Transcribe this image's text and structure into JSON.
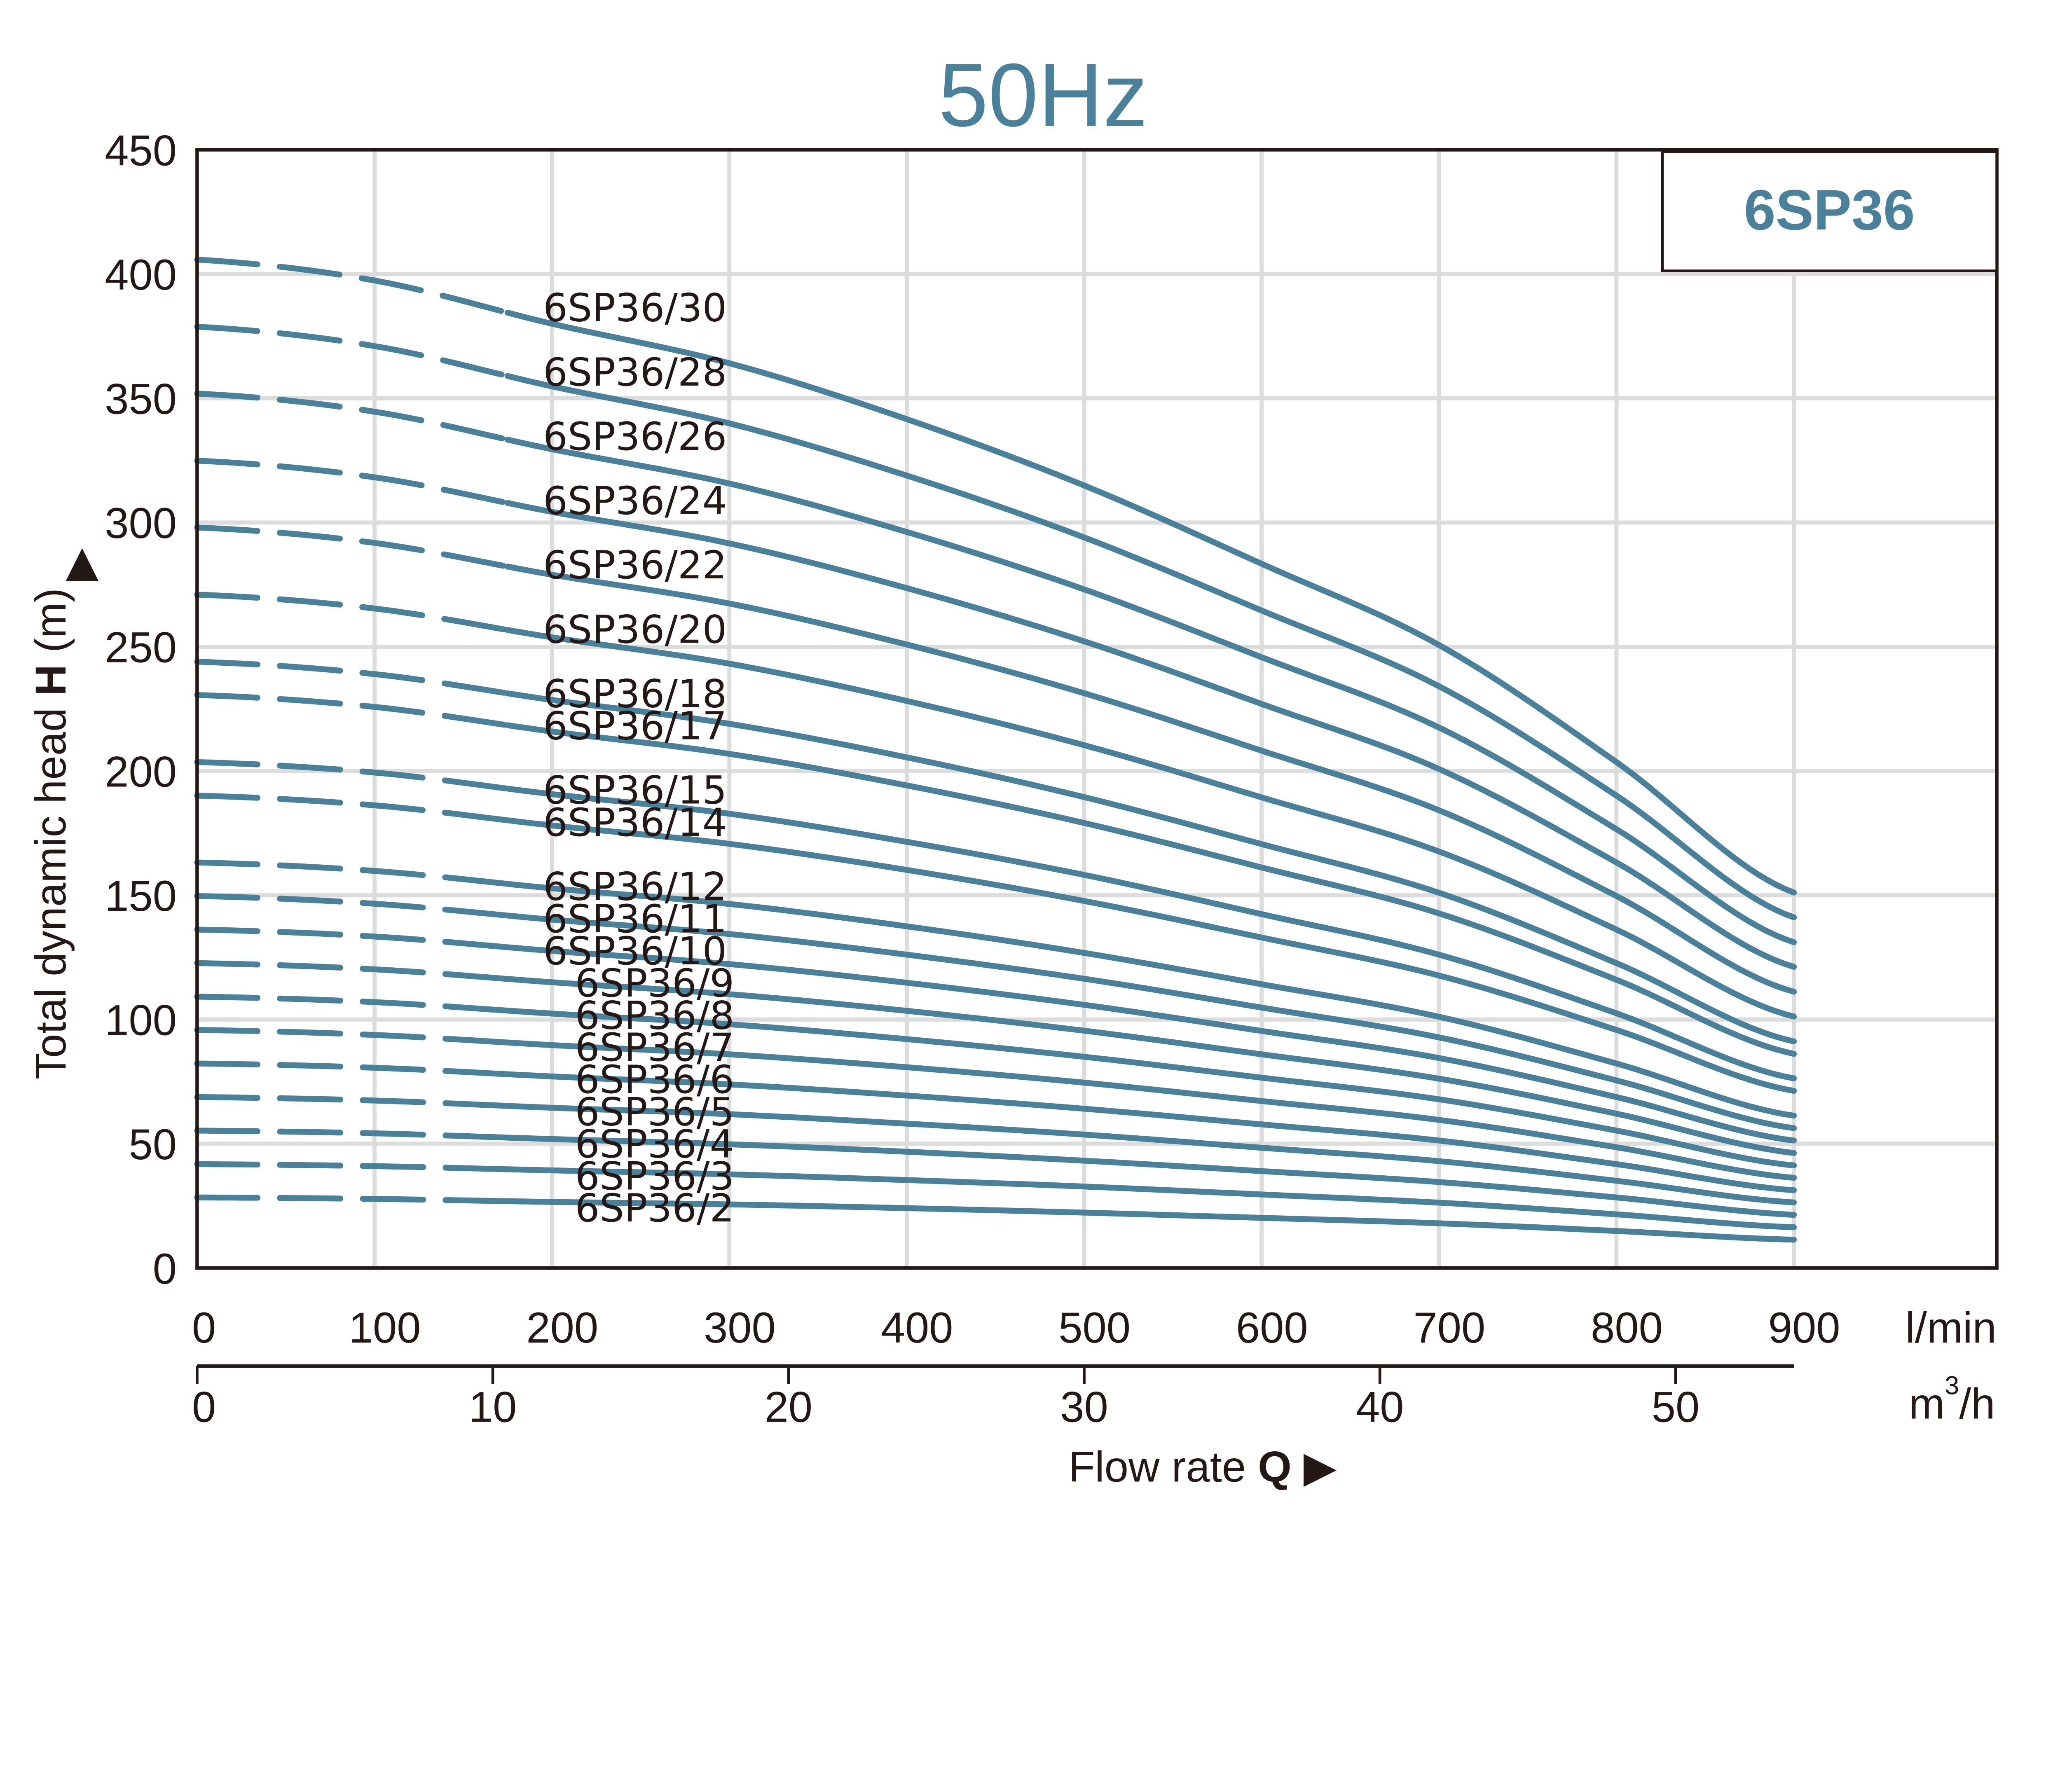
{
  "title": "50Hz",
  "colors": {
    "accent": "#4a8099",
    "grid": "#dcdcdc",
    "text": "#231815"
  },
  "chart_data": {
    "type": "line",
    "title": "50Hz",
    "legend_box": "6SP36",
    "xlabel_prefix": "Flow rate ",
    "xlabel_bold": "Q",
    "xlabel_arrow": "▶",
    "x_unit": "l/min",
    "x2_unit_base": "m",
    "x2_unit_sup": "3",
    "x2_unit_tail": "/h",
    "ylabel_prefix": "Total dynamic head ",
    "ylabel_bold": "H",
    "ylabel_suffix": " (m)",
    "ylabel_arrow": "▲",
    "xlim": [
      0,
      1000
    ],
    "ylim": [
      0,
      450
    ],
    "x_ticks": [
      0,
      100,
      200,
      300,
      400,
      500,
      600,
      700,
      800,
      900
    ],
    "x2_ticks": [
      0,
      10,
      20,
      30,
      40,
      50
    ],
    "y_ticks": [
      0,
      50,
      100,
      150,
      200,
      250,
      300,
      350,
      400,
      450
    ],
    "grid": true,
    "dashed_until": 175,
    "x": [
      0,
      100,
      200,
      300,
      400,
      500,
      600,
      700,
      800,
      900
    ],
    "series": [
      {
        "name": "6SP36/30",
        "values": [
          405.8,
          397.4,
          380.0,
          364.1,
          341.6,
          314.9,
          283.4,
          250.7,
          203.6,
          151.1
        ]
      },
      {
        "name": "6SP36/28",
        "values": [
          378.8,
          371.0,
          354.8,
          339.9,
          318.9,
          294.0,
          264.6,
          234.1,
          190.1,
          141.1
        ]
      },
      {
        "name": "6SP36/26",
        "values": [
          351.9,
          344.6,
          329.5,
          315.7,
          296.2,
          273.1,
          245.8,
          217.5,
          176.6,
          131.1
        ]
      },
      {
        "name": "6SP36/24",
        "values": [
          324.9,
          318.2,
          304.3,
          291.6,
          273.6,
          252.2,
          227.0,
          200.8,
          163.2,
          121.2
        ]
      },
      {
        "name": "6SP36/22",
        "values": [
          298.0,
          291.8,
          279.0,
          267.4,
          250.9,
          231.3,
          208.2,
          184.2,
          149.7,
          111.2
        ]
      },
      {
        "name": "6SP36/20",
        "values": [
          271.0,
          265.4,
          253.8,
          243.2,
          228.2,
          210.4,
          189.4,
          167.6,
          136.2,
          101.2
        ]
      },
      {
        "name": "6SP36/18",
        "values": [
          244.0,
          239.0,
          228.6,
          219.0,
          205.5,
          189.5,
          170.6,
          151.0,
          122.7,
          91.2
        ]
      },
      {
        "name": "6SP36/17",
        "values": [
          230.6,
          225.8,
          215.9,
          206.9,
          194.2,
          179.1,
          161.2,
          142.7,
          116.0,
          86.2
        ]
      },
      {
        "name": "6SP36/15",
        "values": [
          203.6,
          199.4,
          190.7,
          182.8,
          171.5,
          158.2,
          142.4,
          126.1,
          102.5,
          76.3
        ]
      },
      {
        "name": "6SP36/14",
        "values": [
          190.1,
          186.2,
          178.1,
          170.7,
          160.2,
          147.7,
          133.0,
          117.7,
          95.8,
          71.3
        ]
      },
      {
        "name": "6SP36/12",
        "values": [
          163.2,
          159.8,
          152.8,
          146.5,
          137.5,
          126.8,
          114.2,
          101.1,
          82.3,
          61.3
        ]
      },
      {
        "name": "6SP36/11",
        "values": [
          149.7,
          146.6,
          140.2,
          134.4,
          126.1,
          116.4,
          104.8,
          92.8,
          75.5,
          56.3
        ]
      },
      {
        "name": "6SP36/10",
        "values": [
          136.2,
          133.4,
          127.6,
          122.3,
          114.8,
          105.9,
          95.4,
          84.5,
          68.8,
          51.3
        ]
      },
      {
        "name": "6SP36/9",
        "values": [
          122.7,
          120.2,
          115.0,
          110.2,
          103.5,
          95.5,
          86.0,
          76.2,
          62.1,
          46.3
        ]
      },
      {
        "name": "6SP36/8",
        "values": [
          109.2,
          107.0,
          102.4,
          98.1,
          92.1,
          85.0,
          76.6,
          67.9,
          55.3,
          41.3
        ]
      },
      {
        "name": "6SP36/7",
        "values": [
          95.8,
          93.8,
          89.7,
          86.0,
          80.8,
          74.6,
          67.2,
          59.6,
          48.6,
          36.3
        ]
      },
      {
        "name": "6SP36/6",
        "values": [
          82.3,
          80.6,
          77.1,
          73.9,
          69.4,
          64.1,
          57.8,
          51.3,
          41.8,
          31.3
        ]
      },
      {
        "name": "6SP36/5",
        "values": [
          68.8,
          67.4,
          64.5,
          61.9,
          58.1,
          53.7,
          48.4,
          43.0,
          35.1,
          26.4
        ]
      },
      {
        "name": "6SP36/4",
        "values": [
          55.3,
          54.2,
          51.9,
          49.8,
          46.8,
          43.2,
          39.0,
          34.6,
          28.4,
          21.4
        ]
      },
      {
        "name": "6SP36/3",
        "values": [
          41.8,
          41.0,
          39.3,
          37.7,
          35.4,
          32.8,
          29.6,
          26.3,
          21.6,
          16.4
        ]
      },
      {
        "name": "6SP36/2",
        "values": [
          28.4,
          27.8,
          26.6,
          25.6,
          24.1,
          22.3,
          20.2,
          18.0,
          14.9,
          11.4
        ]
      }
    ]
  }
}
